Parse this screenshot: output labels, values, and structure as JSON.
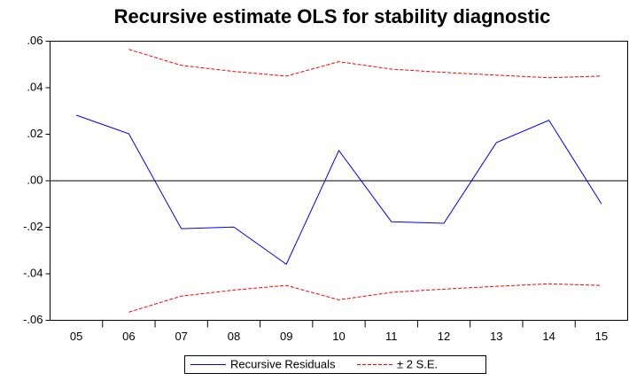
{
  "chart_data": {
    "type": "line",
    "title": "Recursive estimate OLS for stability diagnostic",
    "categories": [
      "05",
      "06",
      "07",
      "08",
      "09",
      "10",
      "11",
      "12",
      "13",
      "14",
      "15"
    ],
    "series": [
      {
        "name": "Recursive Residuals",
        "color": "#0000ff",
        "dashed": false,
        "values": [
          0.0282,
          0.0202,
          -0.0206,
          -0.0199,
          -0.0359,
          0.013,
          -0.0176,
          -0.0183,
          0.0164,
          0.026,
          -0.0099
        ]
      },
      {
        "name": "± 2 S.E.",
        "color": "#ff0000",
        "dashed": true,
        "values": [
          null,
          0.0565,
          0.0496,
          0.047,
          0.045,
          0.0512,
          0.048,
          0.0466,
          0.0454,
          0.0443,
          0.045
        ],
        "lower": [
          null,
          -0.0565,
          -0.0496,
          -0.047,
          -0.045,
          -0.0512,
          -0.048,
          -0.0466,
          -0.0454,
          -0.0443,
          -0.045
        ]
      }
    ],
    "ylim": [
      -0.06,
      0.06
    ],
    "yticks": [
      {
        "value": -0.06,
        "label": "-.06"
      },
      {
        "value": -0.04,
        "label": "-.04"
      },
      {
        "value": -0.02,
        "label": "-.02"
      },
      {
        "value": 0,
        "label": ".00"
      },
      {
        "value": 0.02,
        "label": ".02"
      },
      {
        "value": 0.04,
        "label": ".04"
      },
      {
        "value": 0.06,
        "label": ".06"
      }
    ],
    "zero_line": true,
    "grid": false
  }
}
